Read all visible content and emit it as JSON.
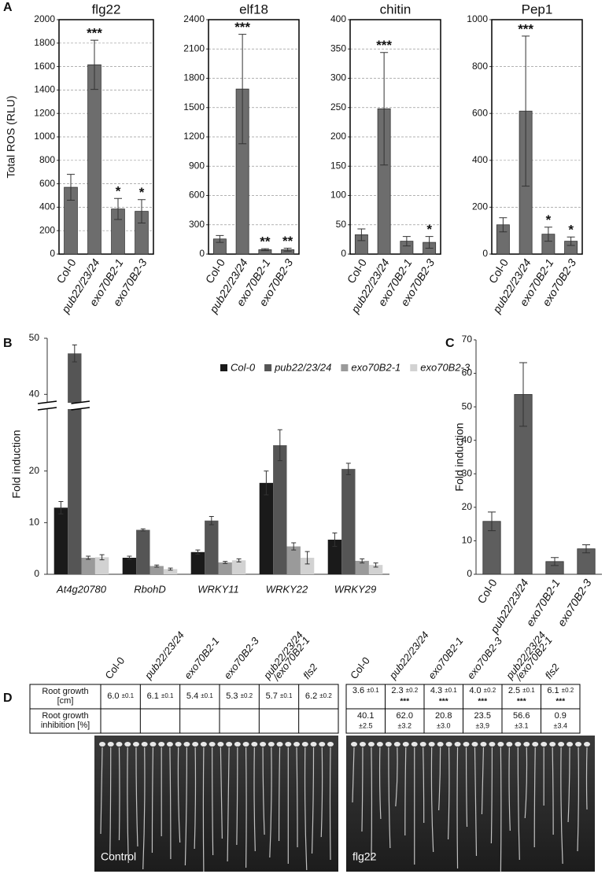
{
  "chart_data": [
    {
      "type": "bar",
      "panel_label": "A",
      "title": "flg22",
      "ylabel": "Total ROS (RLU)",
      "categories": [
        "Col-0",
        "pub22/23/24",
        "exo70B2-1",
        "exo70B2-3"
      ],
      "values": [
        570,
        1615,
        385,
        365
      ],
      "errors": [
        110,
        210,
        90,
        100
      ],
      "annotations": [
        null,
        "***",
        "*",
        "*"
      ],
      "color": "#6d6d6d",
      "ylim": [
        0,
        2000
      ],
      "yticks": [
        0,
        200,
        400,
        600,
        800,
        1000,
        1200,
        1400,
        1600,
        1800,
        2000
      ],
      "grid": true
    },
    {
      "type": "bar",
      "title": "elf18",
      "categories": [
        "Col-0",
        "pub22/23/24",
        "exo70B2-1",
        "exo70B2-3"
      ],
      "values": [
        155,
        1690,
        45,
        45
      ],
      "errors": [
        35,
        560,
        10,
        15
      ],
      "annotations": [
        null,
        "***",
        "**",
        "**"
      ],
      "color": "#6d6d6d",
      "ylim": [
        0,
        2400
      ],
      "yticks": [
        0,
        300,
        600,
        900,
        1200,
        1500,
        1800,
        2100,
        2400
      ],
      "grid": true
    },
    {
      "type": "bar",
      "title": "chitin",
      "categories": [
        "Col-0",
        "pub22/23/24",
        "exo70B2-1",
        "exo70B2-3"
      ],
      "values": [
        33,
        248,
        22,
        20
      ],
      "errors": [
        10,
        96,
        8,
        10
      ],
      "annotations": [
        null,
        "***",
        null,
        "*"
      ],
      "color": "#6d6d6d",
      "ylim": [
        0,
        400
      ],
      "yticks": [
        0,
        50,
        100,
        150,
        200,
        250,
        300,
        350,
        400
      ],
      "grid": true
    },
    {
      "type": "bar",
      "title": "Pep1",
      "categories": [
        "Col-0",
        "pub22/23/24",
        "exo70B2-1",
        "exo70B2-3"
      ],
      "values": [
        125,
        610,
        85,
        55
      ],
      "errors": [
        30,
        320,
        30,
        18
      ],
      "annotations": [
        null,
        "***",
        "*",
        "*"
      ],
      "color": "#6d6d6d",
      "ylim": [
        0,
        1000
      ],
      "yticks": [
        0,
        200,
        400,
        600,
        800,
        1000
      ],
      "grid": true
    },
    {
      "type": "grouped_bar",
      "panel_label": "B",
      "ylabel": "Fold induction",
      "categories": [
        "At4g20780",
        "RbohD",
        "WRKY11",
        "WRKY22",
        "WRKY29"
      ],
      "series": [
        {
          "name": "Col-0",
          "color": "#1a1a1a",
          "values": [
            12.9,
            3.2,
            4.3,
            17.7,
            6.7
          ],
          "errors": [
            1.2,
            0.3,
            0.4,
            2.3,
            1.3
          ]
        },
        {
          "name": "pub22/23/24",
          "color": "#555555",
          "values": [
            47.3,
            8.6,
            10.4,
            25,
            20.4
          ],
          "errors": [
            1.5,
            0.2,
            0.8,
            3,
            1.1
          ]
        },
        {
          "name": "exo70B2-1",
          "color": "#9a9a9a",
          "values": [
            3.2,
            1.6,
            2.3,
            5.4,
            2.6
          ],
          "errors": [
            0.3,
            0.2,
            0.2,
            0.7,
            0.4
          ]
        },
        {
          "name": "exo70B2-3",
          "color": "#d2d2d2",
          "values": [
            3.3,
            1.0,
            2.7,
            3.2,
            1.8
          ],
          "errors": [
            0.5,
            0.2,
            0.3,
            1.2,
            0.4
          ]
        }
      ],
      "ylim": [
        0,
        50
      ],
      "yticks": [
        0,
        10,
        20,
        40,
        50
      ],
      "y_break": [
        32,
        38.5
      ],
      "legend": "top",
      "grid": false
    },
    {
      "type": "bar",
      "panel_label": "C",
      "ylabel": "Fold induction",
      "categories": [
        "Col-0",
        "pub22/23/24",
        "exo70B2-1",
        "exo70B2-3"
      ],
      "values": [
        15.8,
        53.7,
        3.8,
        7.6
      ],
      "errors": [
        2.8,
        9.5,
        1.2,
        1.2
      ],
      "color": "#5e5e5e",
      "ylim": [
        0,
        70
      ],
      "yticks": [
        0,
        10,
        20,
        30,
        40,
        50,
        60,
        70
      ],
      "grid": false
    }
  ],
  "panel_d": {
    "label": "D",
    "genotypes": [
      [
        "Col-0"
      ],
      [
        "pub22/23/24"
      ],
      [
        "exo70B2-1"
      ],
      [
        "exo70B2-3"
      ],
      [
        "pub22/23/24",
        "/exo70B2-1"
      ],
      [
        "fls2"
      ]
    ],
    "row_labels": [
      [
        "Root growth",
        "[cm]"
      ],
      [
        "Root growth",
        "inhibition [%]"
      ]
    ],
    "control": {
      "label": "Control",
      "root_growth": [
        {
          "mean": "6.0",
          "sd": "±0.1"
        },
        {
          "mean": "6.1",
          "sd": "±0.1"
        },
        {
          "mean": "5.4",
          "sd": "±0.1"
        },
        {
          "mean": "5.3",
          "sd": "±0.2"
        },
        {
          "mean": "5.7",
          "sd": "±0.1"
        },
        {
          "mean": "6.2",
          "sd": "±0.2"
        }
      ]
    },
    "flg22": {
      "label": "flg22",
      "root_growth": [
        {
          "mean": "3.6",
          "sd": "±0.1",
          "sig": null
        },
        {
          "mean": "2.3",
          "sd": "±0.2",
          "sig": "***"
        },
        {
          "mean": "4.3",
          "sd": "±0.1",
          "sig": "***"
        },
        {
          "mean": "4.0",
          "sd": "±0.2",
          "sig": "***"
        },
        {
          "mean": "2.5",
          "sd": "±0.1",
          "sig": "***"
        },
        {
          "mean": "6.1",
          "sd": "±0.2",
          "sig": "***"
        }
      ],
      "inhibition": [
        {
          "value": "40.1",
          "sd": "±2.5"
        },
        {
          "value": "62.0",
          "sd": "±3.2"
        },
        {
          "value": "20.8",
          "sd": "±3.0"
        },
        {
          "value": "23.5",
          "sd": "±3,9"
        },
        {
          "value": "56.6",
          "sd": "±3.1"
        },
        {
          "value": "0.9",
          "sd": "±3.4"
        }
      ]
    }
  }
}
